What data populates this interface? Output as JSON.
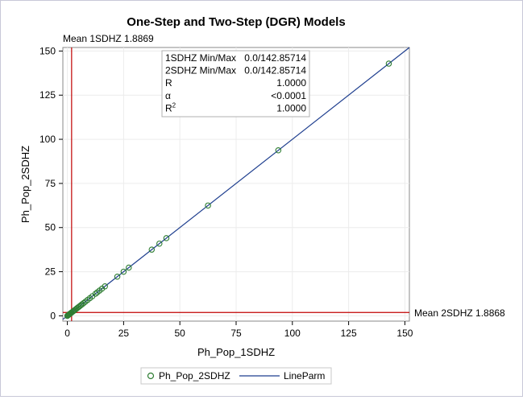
{
  "chart_data": {
    "type": "scatter",
    "title": "One-Step and Two-Step (DGR) Models",
    "xlabel": "Ph_Pop_1SDHZ",
    "ylabel": "Ph_Pop_2SDHZ",
    "xlim": [
      -2,
      152
    ],
    "ylim": [
      -3,
      152
    ],
    "xticks": [
      0,
      25,
      50,
      75,
      100,
      125,
      150
    ],
    "yticks": [
      0,
      25,
      50,
      75,
      100,
      125,
      150
    ],
    "grid": true,
    "series": [
      {
        "name": "Ph_Pop_2SDHZ",
        "marker": "circle",
        "color": "#2e7d32",
        "points": [
          [
            0.0,
            0.0
          ],
          [
            0.3,
            0.3
          ],
          [
            0.6,
            0.6
          ],
          [
            0.9,
            0.9
          ],
          [
            1.2,
            1.2
          ],
          [
            1.5,
            1.5
          ],
          [
            1.8,
            1.8
          ],
          [
            2.2,
            2.2
          ],
          [
            2.6,
            2.6
          ],
          [
            3.0,
            3.0
          ],
          [
            3.5,
            3.5
          ],
          [
            4.0,
            4.0
          ],
          [
            4.5,
            4.5
          ],
          [
            5.0,
            5.0
          ],
          [
            5.5,
            5.5
          ],
          [
            6.0,
            6.0
          ],
          [
            6.6,
            6.6
          ],
          [
            7.2,
            7.2
          ],
          [
            8.0,
            8.0
          ],
          [
            9.0,
            9.0
          ],
          [
            10.0,
            10.0
          ],
          [
            11.1,
            11.1
          ],
          [
            12.5,
            12.5
          ],
          [
            13.3,
            13.3
          ],
          [
            14.3,
            14.3
          ],
          [
            15.4,
            15.4
          ],
          [
            16.7,
            16.7
          ],
          [
            22.2,
            22.2
          ],
          [
            25.0,
            25.0
          ],
          [
            27.3,
            27.3
          ],
          [
            37.5,
            37.5
          ],
          [
            40.9,
            40.9
          ],
          [
            44.0,
            44.0
          ],
          [
            62.5,
            62.5
          ],
          [
            93.75,
            93.75
          ],
          [
            142.85714,
            142.85714
          ]
        ]
      }
    ],
    "lineparm": {
      "name": "LineParm",
      "slope": 1,
      "intercept": 0,
      "color": "#1f3f8f"
    },
    "reflines": {
      "x": {
        "value": 1.8869,
        "label": "Mean 1SDHZ 1.8869",
        "color": "#c00000"
      },
      "y": {
        "value": 1.8868,
        "label": "Mean 2SDHZ 1.8868",
        "color": "#c00000"
      }
    },
    "inset_table": [
      {
        "label": "1SDHZ Min/Max",
        "value": "0.0/142.85714"
      },
      {
        "label": "2SDHZ Min/Max",
        "value": "0.0/142.85714"
      },
      {
        "label": "R",
        "value": "1.0000"
      },
      {
        "label": "α",
        "value": "<0.0001"
      },
      {
        "label": "R²",
        "value": "1.0000"
      }
    ],
    "legend": {
      "position": "bottom",
      "entries": [
        {
          "label": "Ph_Pop_2SDHZ",
          "kind": "marker"
        },
        {
          "label": "LineParm",
          "kind": "line"
        }
      ]
    }
  }
}
